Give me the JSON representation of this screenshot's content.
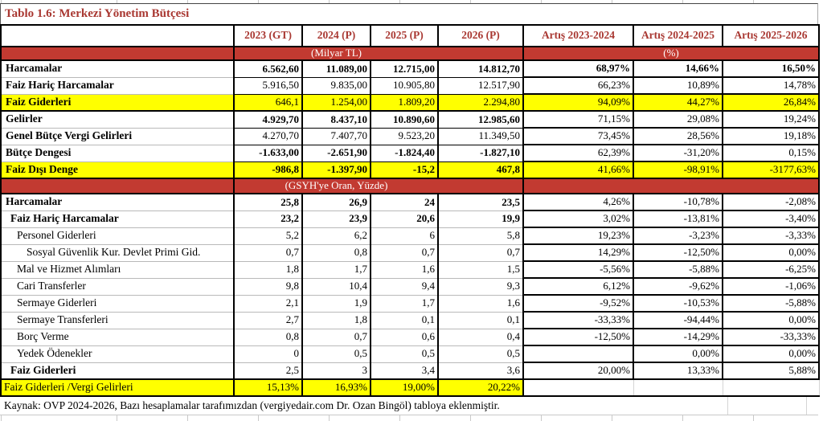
{
  "title": "Tablo 1.6: Merkezi Yönetim Bütçesi",
  "source_note": "Kaynak: OVP 2024-2026, Bazı hesaplamalar tarafımızdan (vergiyedair.com Dr. Ozan Bingöl) tabloya eklenmiştir.",
  "colors": {
    "accent_red_text": "#A93832",
    "band_red_bg": "#C23A31",
    "highlight_yellow": "#FFFF00"
  },
  "columns": [
    "2023 (GT)",
    "2024 (P)",
    "2025 (P)",
    "2026 (P)",
    "Artış 2023-2024",
    "Artış 2024-2025",
    "Artış 2025-2026"
  ],
  "unit_bands": {
    "levels_label": "(Milyar TL)",
    "growth_label": "(%)",
    "ratio_section_label": "(GSYH'ye Oran, Yüzde)"
  },
  "sections": [
    {
      "name": "milyar_tl",
      "rows": [
        {
          "label": "Harcamalar",
          "indent": 0,
          "label_bold": true,
          "yellow": false,
          "divider": false,
          "values": [
            "6.562,60",
            "11.089,00",
            "12.715,00",
            "14.812,70"
          ],
          "values_bold": true,
          "growth": [
            "68,97%",
            "14,66%",
            "16,50%"
          ],
          "growth_bold": true
        },
        {
          "label": "Faiz Hariç Harcamalar",
          "indent": 0,
          "label_bold": true,
          "yellow": false,
          "divider": false,
          "values": [
            "5.916,50",
            "9.835,00",
            "10.905,80",
            "12.517,90"
          ],
          "values_bold": false,
          "growth": [
            "66,23%",
            "10,89%",
            "14,78%"
          ],
          "growth_bold": false
        },
        {
          "label": "Faiz Giderleri",
          "indent": 0,
          "label_bold": true,
          "yellow": true,
          "divider": false,
          "values": [
            "646,1",
            "1.254,00",
            "1.809,20",
            "2.294,80"
          ],
          "values_bold": false,
          "growth": [
            "94,09%",
            "44,27%",
            "26,84%"
          ],
          "growth_bold": false
        },
        {
          "label": "Gelirler",
          "indent": 0,
          "label_bold": true,
          "yellow": false,
          "divider": true,
          "values": [
            "4.929,70",
            "8.437,10",
            "10.890,60",
            "12.985,60"
          ],
          "values_bold": true,
          "growth": [
            "71,15%",
            "29,08%",
            "19,24%"
          ],
          "growth_bold": false
        },
        {
          "label": "Genel Bütçe Vergi Gelirleri",
          "indent": 0,
          "label_bold": true,
          "yellow": false,
          "divider": false,
          "values": [
            "4.270,70",
            "7.407,70",
            "9.523,20",
            "11.349,50"
          ],
          "values_bold": false,
          "growth": [
            "73,45%",
            "28,56%",
            "19,18%"
          ],
          "growth_bold": false
        },
        {
          "label": "Bütçe Dengesi",
          "indent": 0,
          "label_bold": true,
          "yellow": false,
          "divider": false,
          "values": [
            "-1.633,00",
            "-2.651,90",
            "-1.824,40",
            "-1.827,10"
          ],
          "values_bold": true,
          "growth": [
            "62,39%",
            "-31,20%",
            "0,15%"
          ],
          "growth_bold": false
        },
        {
          "label": "Faiz Dışı Denge",
          "indent": 0,
          "label_bold": true,
          "yellow": true,
          "divider": false,
          "values": [
            "-986,8",
            "-1.397,90",
            "-15,2",
            "467,8"
          ],
          "values_bold": true,
          "growth": [
            "41,66%",
            "-98,91%",
            "-3177,63%"
          ],
          "growth_bold": false
        }
      ]
    },
    {
      "name": "gsyh_oran",
      "rows": [
        {
          "label": "Harcamalar",
          "indent": 0,
          "label_bold": true,
          "yellow": false,
          "divider": false,
          "values": [
            "25,8",
            "26,9",
            "24",
            "23,5"
          ],
          "values_bold": true,
          "growth": [
            "4,26%",
            "-10,78%",
            "-2,08%"
          ],
          "growth_bold": false
        },
        {
          "label": "Faiz Hariç Harcamalar",
          "indent": 1,
          "label_bold": true,
          "yellow": false,
          "divider": false,
          "values": [
            "23,2",
            "23,9",
            "20,6",
            "19,9"
          ],
          "values_bold": true,
          "growth": [
            "3,02%",
            "-13,81%",
            "-3,40%"
          ],
          "growth_bold": false
        },
        {
          "label": "Personel Giderleri",
          "indent": 2,
          "label_bold": false,
          "yellow": false,
          "divider": false,
          "values": [
            "5,2",
            "6,2",
            "6",
            "5,8"
          ],
          "values_bold": false,
          "growth": [
            "19,23%",
            "-3,23%",
            "-3,33%"
          ],
          "growth_bold": false
        },
        {
          "label": "Sosyal Güvenlik Kur. Devlet Primi Gid.",
          "indent": 3,
          "label_bold": false,
          "yellow": false,
          "divider": false,
          "values": [
            "0,7",
            "0,8",
            "0,7",
            "0,7"
          ],
          "values_bold": false,
          "growth": [
            "14,29%",
            "-12,50%",
            "0,00%"
          ],
          "growth_bold": false
        },
        {
          "label": "Mal ve Hizmet Alımları",
          "indent": 2,
          "label_bold": false,
          "yellow": false,
          "divider": false,
          "values": [
            "1,8",
            "1,7",
            "1,6",
            "1,5"
          ],
          "values_bold": false,
          "growth": [
            "-5,56%",
            "-5,88%",
            "-6,25%"
          ],
          "growth_bold": false
        },
        {
          "label": "Cari Transferler",
          "indent": 2,
          "label_bold": false,
          "yellow": false,
          "divider": false,
          "values": [
            "9,8",
            "10,4",
            "9,4",
            "9,3"
          ],
          "values_bold": false,
          "growth": [
            "6,12%",
            "-9,62%",
            "-1,06%"
          ],
          "growth_bold": false
        },
        {
          "label": "Sermaye Giderleri",
          "indent": 2,
          "label_bold": false,
          "yellow": false,
          "divider": false,
          "values": [
            "2,1",
            "1,9",
            "1,7",
            "1,6"
          ],
          "values_bold": false,
          "growth": [
            "-9,52%",
            "-10,53%",
            "-5,88%"
          ],
          "growth_bold": false
        },
        {
          "label": "Sermaye Transferleri",
          "indent": 2,
          "label_bold": false,
          "yellow": false,
          "divider": false,
          "values": [
            "2,7",
            "1,8",
            "0,1",
            "0,1"
          ],
          "values_bold": false,
          "growth": [
            "-33,33%",
            "-94,44%",
            "0,00%"
          ],
          "growth_bold": false
        },
        {
          "label": "Borç Verme",
          "indent": 2,
          "label_bold": false,
          "yellow": false,
          "divider": false,
          "values": [
            "0,8",
            "0,7",
            "0,6",
            "0,4"
          ],
          "values_bold": false,
          "growth": [
            "-12,50%",
            "-14,29%",
            "-33,33%"
          ],
          "growth_bold": false
        },
        {
          "label": "Yedek Ödenekler",
          "indent": 2,
          "label_bold": false,
          "yellow": false,
          "divider": false,
          "values": [
            "0",
            "0,5",
            "0,5",
            "0,5"
          ],
          "values_bold": false,
          "growth": [
            "",
            "0,00%",
            "0,00%"
          ],
          "growth_bold": false
        },
        {
          "label": "Faiz Giderleri",
          "indent": 1,
          "label_bold": true,
          "yellow": false,
          "divider": false,
          "values": [
            "2,5",
            "3",
            "3,4",
            "3,6"
          ],
          "values_bold": false,
          "growth": [
            "20,00%",
            "13,33%",
            "5,88%"
          ],
          "growth_bold": false
        }
      ]
    }
  ],
  "ratio_row": {
    "label": "Faiz Giderleri /Vergi Gelirleri",
    "values": [
      "15,13%",
      "16,93%",
      "19,00%",
      "20,22%"
    ]
  }
}
